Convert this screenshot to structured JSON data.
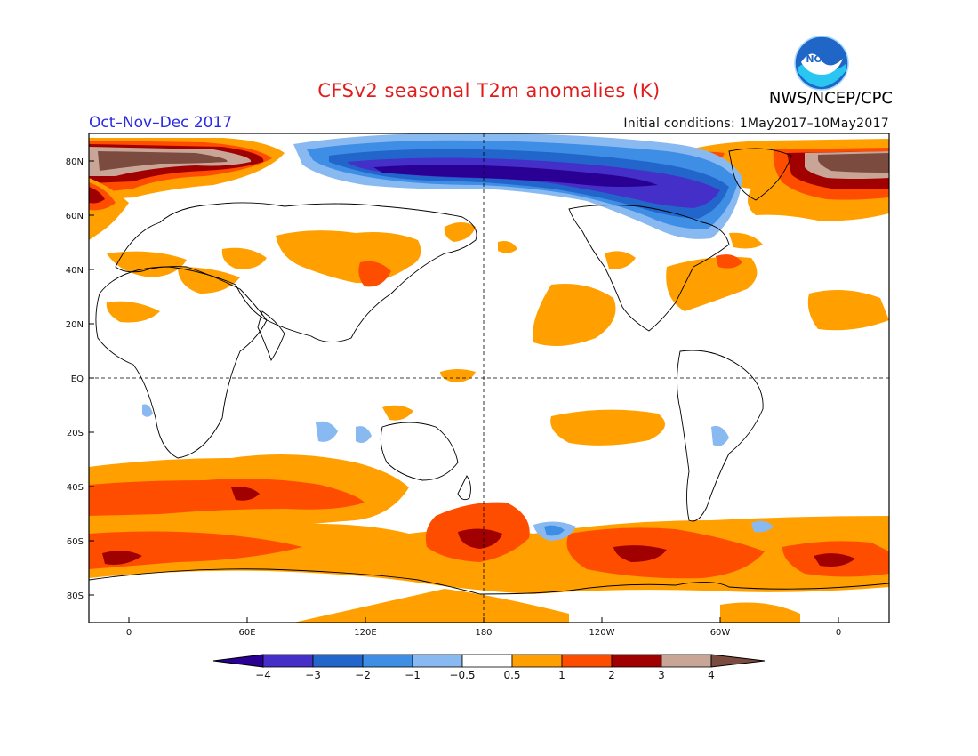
{
  "header": {
    "title": "CFSv2 seasonal T2m anomalies (K)",
    "agency": "NWS/NCEP/CPC",
    "season": "Oct–Nov–Dec 2017",
    "init": "Initial conditions: 1May2017–10May2017",
    "logo_text": "NOAA"
  },
  "axes": {
    "lat_labels": [
      "80N",
      "60N",
      "40N",
      "20N",
      "EQ",
      "20S",
      "40S",
      "60S",
      "80S"
    ],
    "lon_labels": [
      "0",
      "60E",
      "120E",
      "180",
      "120W",
      "60W",
      "0"
    ]
  },
  "colorbar": {
    "labels": [
      "-4",
      "-3",
      "-2",
      "-1",
      "-0.5",
      "0.5",
      "1",
      "2",
      "3",
      "4"
    ],
    "colors": [
      "#2a0094",
      "#4430c8",
      "#2266cc",
      "#3f8ee6",
      "#88b9f0",
      "#ffffff",
      "#ffa000",
      "#ff4d00",
      "#a00000",
      "#c8a596",
      "#7a4b3e"
    ]
  },
  "palette": {
    "orange": "#ffa000",
    "red": "#ff4d00",
    "darkred": "#a00000",
    "brown": "#7a4b3e",
    "tan": "#c8a596",
    "blue_light": "#88b9f0",
    "blue": "#3f8ee6",
    "blue_mid": "#2266cc",
    "blue_dark": "#4430c8",
    "blue_deep": "#2a0094"
  }
}
